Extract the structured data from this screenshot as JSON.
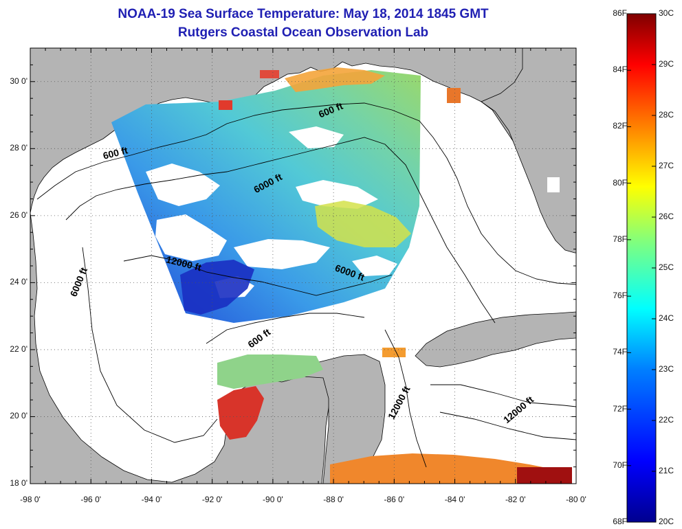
{
  "title": {
    "line1": "NOAA-19 Sea Surface Temperature:  May 18, 2014 1845 GMT",
    "line2": "Rutgers Coastal Ocean Observation Lab"
  },
  "axes": {
    "lat_labels": [
      "30 0'",
      "28 0'",
      "26 0'",
      "24 0'",
      "22 0'",
      "20 0'",
      "18 0'"
    ],
    "lon_labels": [
      "-98 0'",
      "-96 0'",
      "-94 0'",
      "-92 0'",
      "-90 0'",
      "-88 0'",
      "-86 0'",
      "-84 0'",
      "-82 0'",
      "-80 0'"
    ],
    "lat_range": [
      18,
      31
    ],
    "lon_range": [
      -98,
      -80
    ],
    "grid": "dotted"
  },
  "colorbar": {
    "f_labels": [
      "86F",
      "84F",
      "82F",
      "80F",
      "78F",
      "76F",
      "74F",
      "72F",
      "70F",
      "68F"
    ],
    "c_labels": [
      "30C",
      "29C",
      "28C",
      "27C",
      "26C",
      "25C",
      "24C",
      "23C",
      "22C",
      "21C",
      "20C"
    ],
    "range_c": [
      20,
      30
    ],
    "colors": [
      "#00008f",
      "#0000ff",
      "#007fff",
      "#00ffff",
      "#7fff7f",
      "#ffff00",
      "#ff7f00",
      "#ff0000",
      "#7f0000"
    ]
  },
  "contour_labels": [
    {
      "text": "600 ft"
    },
    {
      "text": "600 ft"
    },
    {
      "text": "6000 ft"
    },
    {
      "text": "6000 ft"
    },
    {
      "text": "6000 ft"
    },
    {
      "text": "12000 ft"
    },
    {
      "text": "600 ft"
    },
    {
      "text": "12000 ft"
    },
    {
      "text": "12000 ft"
    }
  ],
  "colors": {
    "land": "#b4b4b4",
    "cloud": "#ffffff",
    "title": "#1f1fb3"
  }
}
